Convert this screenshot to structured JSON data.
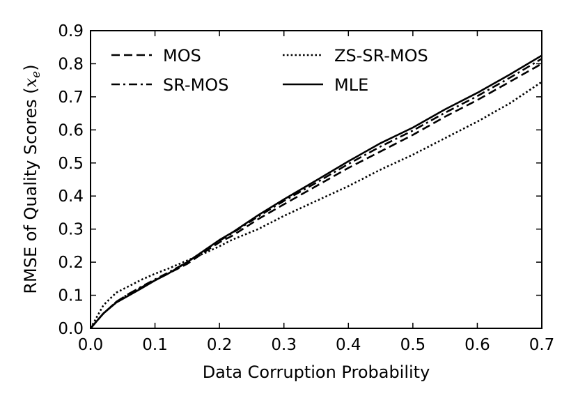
{
  "chart_data": {
    "type": "line",
    "title": "",
    "xlabel": "Data Corruption Probability",
    "ylabel_text": "RMSE of Quality Scores (",
    "ylabel_math_var": "x",
    "ylabel_math_sub": "e",
    "ylabel_close": ")",
    "xlim": [
      0.0,
      0.7
    ],
    "ylim": [
      0.0,
      0.9
    ],
    "xticks": [
      0.0,
      0.1,
      0.2,
      0.3,
      0.4,
      0.5,
      0.6,
      0.7
    ],
    "yticks": [
      0.0,
      0.1,
      0.2,
      0.3,
      0.4,
      0.5,
      0.6,
      0.7,
      0.8,
      0.9
    ],
    "xtick_labels": [
      "0.0",
      "0.1",
      "0.2",
      "0.3",
      "0.4",
      "0.5",
      "0.6",
      "0.7"
    ],
    "ytick_labels": [
      "0.0",
      "0.1",
      "0.2",
      "0.3",
      "0.4",
      "0.5",
      "0.6",
      "0.7",
      "0.8",
      "0.9"
    ],
    "grid": false,
    "legend_position": "top-left",
    "series": [
      {
        "name": "MOS",
        "style": "dashed",
        "x": [
          0.0,
          0.02,
          0.04,
          0.06,
          0.08,
          0.1,
          0.12,
          0.15,
          0.18,
          0.2,
          0.22,
          0.26,
          0.3,
          0.35,
          0.4,
          0.45,
          0.5,
          0.55,
          0.6,
          0.65,
          0.7
        ],
        "y": [
          0.0,
          0.045,
          0.08,
          0.105,
          0.125,
          0.145,
          0.165,
          0.195,
          0.235,
          0.26,
          0.28,
          0.33,
          0.375,
          0.43,
          0.485,
          0.535,
          0.585,
          0.64,
          0.69,
          0.745,
          0.8
        ]
      },
      {
        "name": "SR-MOS",
        "style": "dashdot",
        "x": [
          0.0,
          0.02,
          0.04,
          0.06,
          0.08,
          0.1,
          0.12,
          0.15,
          0.18,
          0.2,
          0.22,
          0.26,
          0.3,
          0.35,
          0.4,
          0.45,
          0.5,
          0.55,
          0.6,
          0.65,
          0.7
        ],
        "y": [
          0.0,
          0.045,
          0.08,
          0.105,
          0.127,
          0.148,
          0.168,
          0.2,
          0.24,
          0.265,
          0.288,
          0.338,
          0.385,
          0.44,
          0.497,
          0.55,
          0.598,
          0.652,
          0.702,
          0.757,
          0.815
        ]
      },
      {
        "name": "ZS-SR-MOS",
        "style": "dotted",
        "x": [
          0.0,
          0.02,
          0.04,
          0.06,
          0.08,
          0.1,
          0.12,
          0.15,
          0.18,
          0.2,
          0.22,
          0.26,
          0.3,
          0.35,
          0.4,
          0.45,
          0.5,
          0.55,
          0.6,
          0.65,
          0.7
        ],
        "y": [
          0.0,
          0.07,
          0.108,
          0.128,
          0.148,
          0.165,
          0.18,
          0.205,
          0.23,
          0.248,
          0.268,
          0.3,
          0.34,
          0.385,
          0.43,
          0.48,
          0.525,
          0.575,
          0.625,
          0.68,
          0.745
        ]
      },
      {
        "name": "MLE",
        "style": "solid",
        "x": [
          0.0,
          0.02,
          0.04,
          0.06,
          0.08,
          0.1,
          0.12,
          0.15,
          0.18,
          0.2,
          0.22,
          0.26,
          0.3,
          0.35,
          0.4,
          0.45,
          0.5,
          0.55,
          0.6,
          0.65,
          0.7
        ],
        "y": [
          0.0,
          0.045,
          0.078,
          0.1,
          0.122,
          0.145,
          0.165,
          0.2,
          0.24,
          0.267,
          0.29,
          0.342,
          0.39,
          0.447,
          0.505,
          0.56,
          0.607,
          0.662,
          0.712,
          0.767,
          0.825
        ]
      }
    ]
  }
}
